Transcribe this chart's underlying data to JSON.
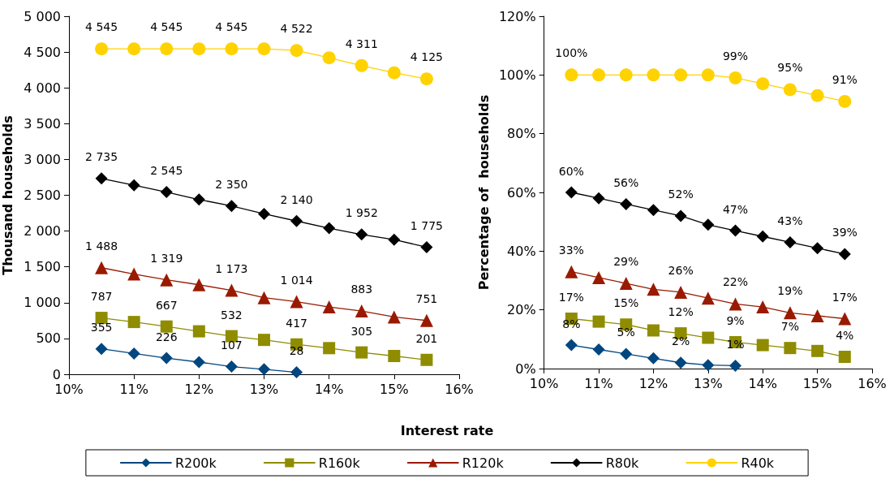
{
  "chart_data": [
    {
      "type": "line",
      "xlabel": "Interest rate",
      "ylabel": "Thousand households",
      "x": [
        10.5,
        11,
        11.5,
        12,
        12.5,
        13,
        13.5,
        14,
        14.5,
        15,
        15.5
      ],
      "xlim": [
        10,
        16
      ],
      "xticks": [
        {
          "value": 10,
          "label": "10%"
        },
        {
          "value": 11,
          "label": "11%"
        },
        {
          "value": 12,
          "label": "12%"
        },
        {
          "value": 13,
          "label": "13%"
        },
        {
          "value": 14,
          "label": "14%"
        },
        {
          "value": 15,
          "label": "15%"
        },
        {
          "value": 16,
          "label": "16%"
        }
      ],
      "ylim": [
        0,
        5000
      ],
      "yticks": [
        0,
        500,
        {
          "value": 1000,
          "label": "1 000"
        },
        {
          "value": 1500,
          "label": "1 500"
        },
        {
          "value": 2000,
          "label": "2 000"
        },
        {
          "value": 2500,
          "label": "2 500"
        },
        {
          "value": 3000,
          "label": "3 000"
        },
        {
          "value": 3500,
          "label": "3 500"
        },
        {
          "value": 4000,
          "label": "4 000"
        },
        {
          "value": 4500,
          "label": "4 500"
        },
        {
          "value": 5000,
          "label": "5 000"
        }
      ],
      "grid": false,
      "legend": "bottom",
      "series": [
        {
          "name": "R200k",
          "color": "#00467f",
          "marker": "diamond",
          "values": [
            355,
            290,
            226,
            170,
            107,
            70,
            28,
            null,
            null,
            null,
            null
          ],
          "value_labels": [
            "355",
            null,
            "226",
            null,
            "107",
            null,
            "28",
            null,
            null,
            null,
            null
          ]
        },
        {
          "name": "R160k",
          "color": "#8f8c00",
          "marker": "square",
          "values": [
            787,
            730,
            667,
            600,
            532,
            480,
            417,
            365,
            305,
            255,
            201
          ],
          "value_labels": [
            "787",
            null,
            "667",
            null,
            "532",
            null,
            "417",
            null,
            "305",
            null,
            "201"
          ]
        },
        {
          "name": "R120k",
          "color": "#991a00",
          "marker": "triangle",
          "values": [
            1488,
            1400,
            1319,
            1250,
            1173,
            1070,
            1014,
            940,
            883,
            800,
            751
          ],
          "value_labels": [
            "1 488",
            null,
            "1 319",
            null,
            "1 173",
            null,
            "1 014",
            null,
            "883",
            null,
            "751"
          ]
        },
        {
          "name": "R80k",
          "color": "#000000",
          "marker": "diamond",
          "values": [
            2735,
            2640,
            2545,
            2440,
            2350,
            2240,
            2140,
            2040,
            1952,
            1880,
            1775
          ],
          "value_labels": [
            "2 735",
            null,
            "2 545",
            null,
            "2 350",
            null,
            "2 140",
            null,
            "1 952",
            null,
            "1 775"
          ]
        },
        {
          "name": "R40k",
          "color": "#ffd200",
          "marker": "circle",
          "values": [
            4545,
            4545,
            4545,
            4545,
            4545,
            4545,
            4522,
            4420,
            4311,
            4210,
            4125
          ],
          "value_labels": [
            "4 545",
            null,
            "4 545",
            null,
            "4 545",
            null,
            "4 522",
            null,
            "4 311",
            null,
            "4 125"
          ]
        }
      ]
    },
    {
      "type": "line",
      "ylabel": "Percentage of  households",
      "x": [
        10.5,
        11,
        11.5,
        12,
        12.5,
        13,
        13.5,
        14,
        14.5,
        15,
        15.5
      ],
      "xlim": [
        10,
        16
      ],
      "xticks": [
        {
          "value": 10,
          "label": "10%"
        },
        {
          "value": 11,
          "label": "11%"
        },
        {
          "value": 12,
          "label": "12%"
        },
        {
          "value": 13,
          "label": "13%"
        },
        {
          "value": 14,
          "label": "14%"
        },
        {
          "value": 15,
          "label": "15%"
        },
        {
          "value": 16,
          "label": "16%"
        }
      ],
      "ylim": [
        0,
        120
      ],
      "yticks": [
        {
          "value": 0,
          "label": "0%"
        },
        {
          "value": 20,
          "label": "20%"
        },
        {
          "value": 40,
          "label": "40%"
        },
        {
          "value": 60,
          "label": "60%"
        },
        {
          "value": 80,
          "label": "80%"
        },
        {
          "value": 100,
          "label": "100%"
        },
        {
          "value": 120,
          "label": "120%"
        }
      ],
      "grid": false,
      "legend": false,
      "series": [
        {
          "color": "#00467f",
          "marker": "diamond",
          "values": [
            8,
            6.5,
            5,
            3.5,
            2,
            1.2,
            1,
            null,
            null,
            null,
            null
          ],
          "value_labels": [
            "8%",
            null,
            "5%",
            null,
            "2%",
            null,
            "1%",
            null,
            null,
            null,
            null
          ]
        },
        {
          "color": "#8f8c00",
          "marker": "square",
          "values": [
            17,
            16,
            15,
            13,
            12,
            10.5,
            9,
            8,
            7,
            6,
            4
          ],
          "value_labels": [
            "17%",
            null,
            "15%",
            null,
            "12%",
            null,
            "9%",
            null,
            "7%",
            null,
            "4%"
          ]
        },
        {
          "color": "#991a00",
          "marker": "triangle",
          "values": [
            33,
            31,
            29,
            27,
            26,
            24,
            22,
            21,
            19,
            18,
            17
          ],
          "value_labels": [
            "33%",
            null,
            "29%",
            null,
            "26%",
            null,
            "22%",
            null,
            "19%",
            null,
            "17%"
          ]
        },
        {
          "color": "#000000",
          "marker": "diamond",
          "values": [
            60,
            58,
            56,
            54,
            52,
            49,
            47,
            45,
            43,
            41,
            39
          ],
          "value_labels": [
            "60%",
            null,
            "56%",
            null,
            "52%",
            null,
            "47%",
            null,
            "43%",
            null,
            "39%"
          ]
        },
        {
          "color": "#ffd200",
          "marker": "circle",
          "values": [
            100,
            100,
            100,
            100,
            100,
            100,
            99,
            97,
            95,
            93,
            91
          ],
          "value_labels": [
            "100%",
            null,
            null,
            null,
            null,
            null,
            "99%",
            null,
            "95%",
            null,
            "91%"
          ]
        }
      ]
    }
  ]
}
